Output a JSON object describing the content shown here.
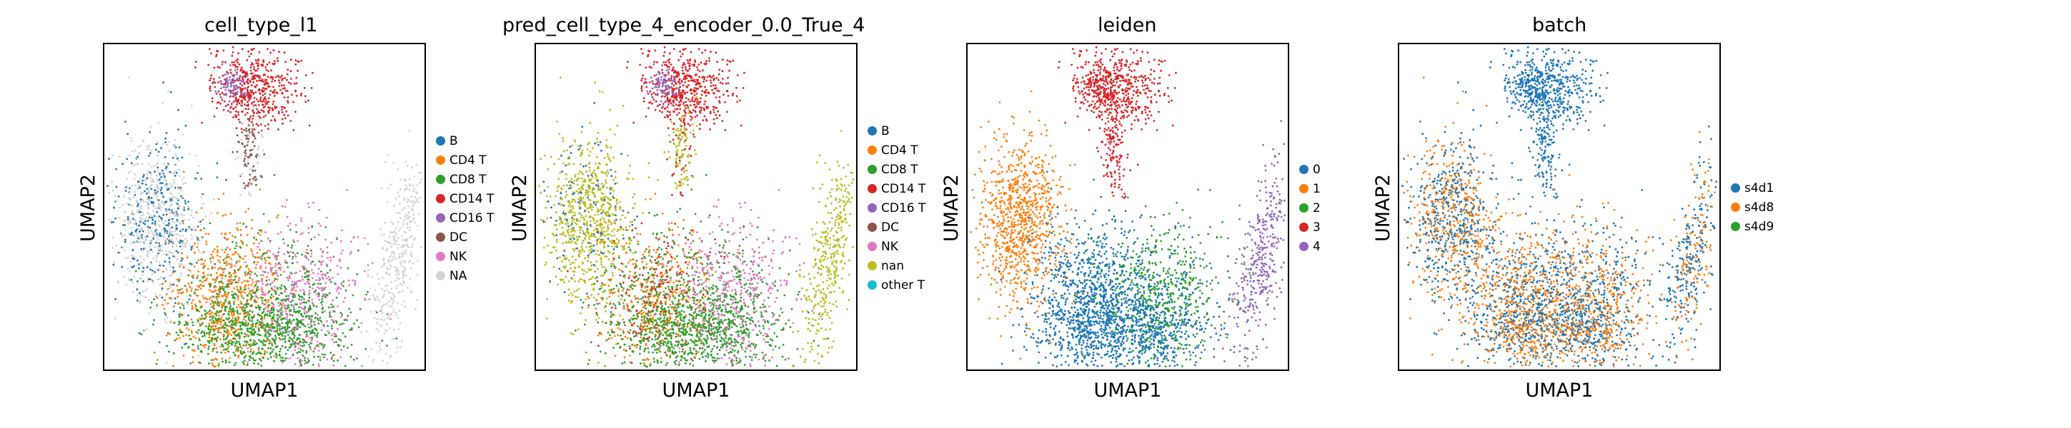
{
  "chart_data": [
    {
      "type": "scatter",
      "title": "cell_type_l1",
      "xlabel": "UMAP1",
      "ylabel": "UMAP2",
      "legend": [
        "B",
        "CD4 T",
        "CD8 T",
        "CD14 T",
        "CD16 T",
        "DC",
        "NK",
        "NA"
      ],
      "colors": [
        "#1f77b4",
        "#ff7f0e",
        "#2ca02c",
        "#d62728",
        "#9467bd",
        "#8c564b",
        "#e377c2",
        "#d3d3d3"
      ],
      "legend_placement": "right",
      "grid": false
    },
    {
      "type": "scatter",
      "title": "pred_cell_type_4_encoder_0.0_True_4",
      "xlabel": "UMAP1",
      "ylabel": "UMAP2",
      "legend": [
        "B",
        "CD4 T",
        "CD8 T",
        "CD14 T",
        "CD16 T",
        "DC",
        "NK",
        "nan",
        "other T"
      ],
      "colors": [
        "#1f77b4",
        "#ff7f0e",
        "#2ca02c",
        "#d62728",
        "#9467bd",
        "#8c564b",
        "#e377c2",
        "#bcbd22",
        "#17becf"
      ],
      "legend_placement": "right",
      "grid": false
    },
    {
      "type": "scatter",
      "title": "leiden",
      "xlabel": "UMAP1",
      "ylabel": "UMAP2",
      "legend": [
        "0",
        "1",
        "2",
        "3",
        "4"
      ],
      "colors": [
        "#1f77b4",
        "#ff7f0e",
        "#2ca02c",
        "#d62728",
        "#9467bd"
      ],
      "legend_placement": "right",
      "grid": false
    },
    {
      "type": "scatter",
      "title": "batch",
      "xlabel": "UMAP1",
      "ylabel": "UMAP2",
      "legend": [
        "s4d1",
        "s4d8",
        "s4d9"
      ],
      "colors": [
        "#1f77b4",
        "#ff7f0e",
        "#2ca02c"
      ],
      "legend_placement": "right",
      "grid": false
    }
  ]
}
